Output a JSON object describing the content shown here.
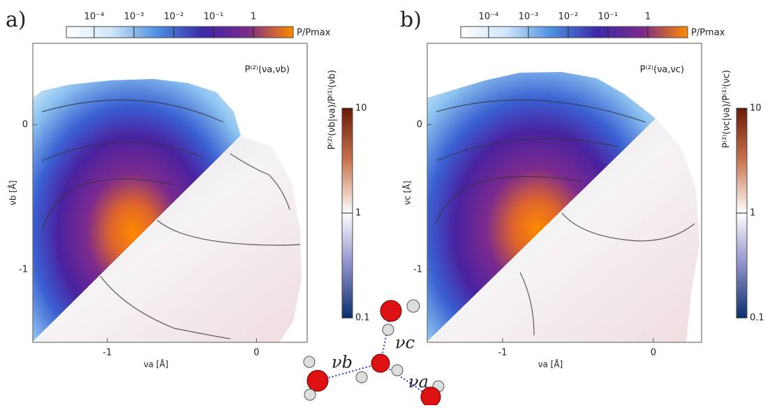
{
  "chart_data": [
    {
      "type": "contour",
      "panel_label": "a)",
      "annotation": "P⁽²⁾(νa,νb)",
      "x_label": "νa [Å]",
      "y_label": "νb [Å]",
      "xlim": [
        -1.5,
        0.34
      ],
      "ylim": [
        -1.5,
        0.56
      ],
      "xticks": [
        -1,
        0
      ],
      "yticks": [
        -1,
        0
      ],
      "colorbar": {
        "label": "P/Pmax",
        "scale": "log",
        "lim": [
          2e-05,
          10
        ],
        "ticks": [
          {
            "value": 0.0001,
            "label": "10⁻⁴"
          },
          {
            "value": 0.001,
            "label": "10⁻³"
          },
          {
            "value": 0.01,
            "label": "10⁻²"
          },
          {
            "value": 0.1,
            "label": "10⁻¹"
          },
          1
        ]
      },
      "ratio_colorbar": {
        "label": "P⁽²⁾(νb|νa)/P⁽¹⁾(νb)",
        "scale": "log",
        "lim": [
          0.1,
          10
        ],
        "ticks": [
          10,
          1,
          0.1
        ]
      }
    },
    {
      "type": "contour",
      "panel_label": "b)",
      "annotation": "P⁽²⁾(νa,νc)",
      "x_label": "νa [Å]",
      "y_label": "νc [Å]",
      "xlim": [
        -1.5,
        0.32
      ],
      "ylim": [
        -1.5,
        0.56
      ],
      "xticks": [
        -1,
        0
      ],
      "yticks": [
        -1,
        0
      ],
      "colorbar": {
        "label": "P/Pmax",
        "scale": "log",
        "lim": [
          2e-05,
          10
        ],
        "ticks": [
          {
            "value": 0.0001,
            "label": "10⁻⁴"
          },
          {
            "value": 0.001,
            "label": "10⁻³"
          },
          {
            "value": 0.01,
            "label": "10⁻²"
          },
          {
            "value": 0.1,
            "label": "10⁻¹"
          },
          1
        ]
      },
      "ratio_colorbar": {
        "label": "P⁽²⁾(νc|νa)/P⁽¹⁾(νc)",
        "scale": "log",
        "lim": [
          0.1,
          10
        ],
        "ticks": [
          10,
          1,
          0.1
        ]
      }
    }
  ],
  "molecule": {
    "labels": [
      "νb",
      "νc",
      "νa"
    ]
  }
}
